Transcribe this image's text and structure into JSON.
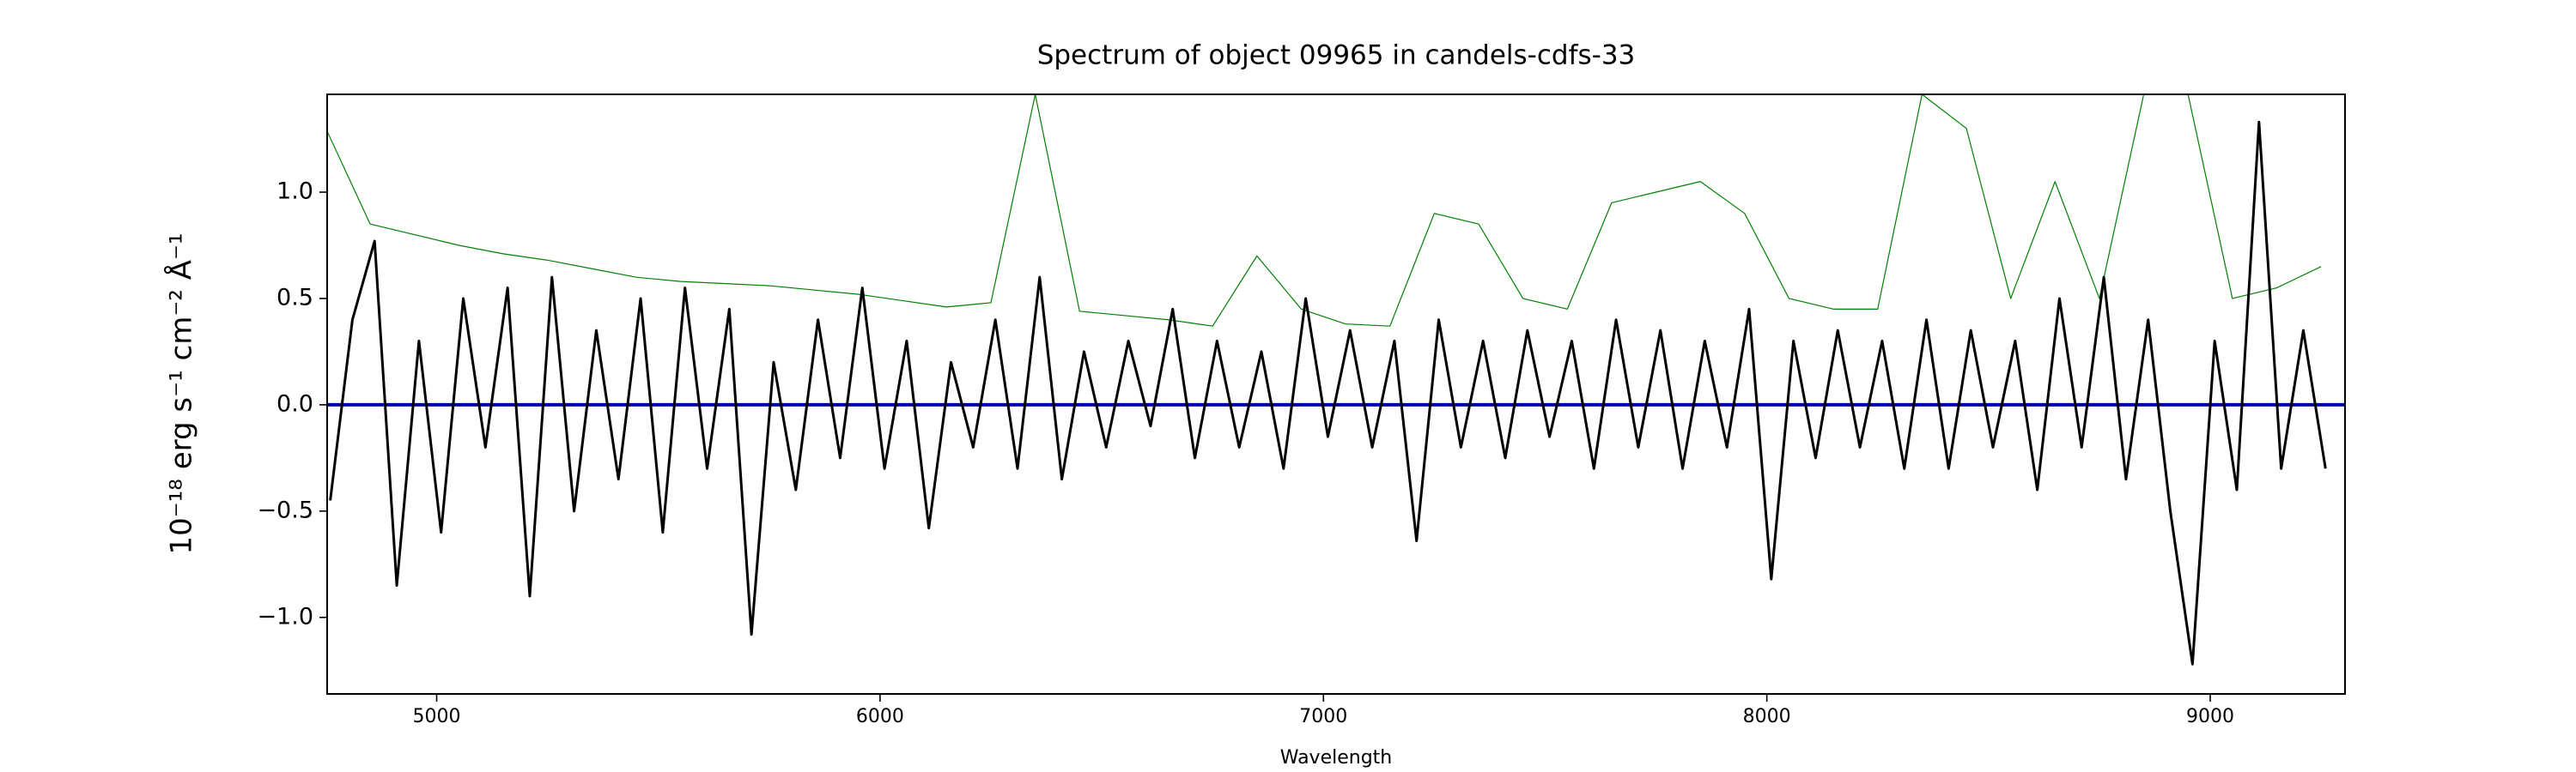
{
  "chart_data": {
    "type": "line",
    "title": "Spectrum of object 09965 in candels-cdfs-33",
    "x_label": "Wavelength",
    "y_label": "10⁻¹⁸ erg s⁻¹ cm⁻² Å⁻¹",
    "xlim": [
      4753,
      9304
    ],
    "ylim": [
      -1.36,
      1.46
    ],
    "xticks": [
      5000,
      6000,
      7000,
      8000,
      9000
    ],
    "yticks": [
      {
        "value": -1,
        "label": "−1.0"
      },
      {
        "value": -0.5,
        "label": "−0.5"
      },
      {
        "value": 0,
        "label": "0.0"
      },
      0.5,
      {
        "value": 1,
        "label": "1.0"
      }
    ],
    "series": [
      {
        "color": "#008000",
        "line_width": 1.2,
        "x": [
          4750,
          4850,
          4950,
          5050,
          5150,
          5250,
          5350,
          5450,
          5550,
          5650,
          5750,
          5850,
          5950,
          6050,
          6150,
          6250,
          6350,
          6450,
          6550,
          6650,
          6750,
          6850,
          6950,
          7050,
          7150,
          7250,
          7350,
          7450,
          7550,
          7650,
          7750,
          7850,
          7950,
          8050,
          8150,
          8250,
          8350,
          8450,
          8550,
          8650,
          8750,
          8850,
          8950,
          9050,
          9150,
          9250
        ],
        "values": [
          1.3,
          0.85,
          0.8,
          0.75,
          0.71,
          0.68,
          0.64,
          0.6,
          0.58,
          0.57,
          0.56,
          0.54,
          0.52,
          0.49,
          0.46,
          0.48,
          1.46,
          0.44,
          0.42,
          0.4,
          0.37,
          0.7,
          0.45,
          0.38,
          0.37,
          0.9,
          0.85,
          0.5,
          0.45,
          0.95,
          1.0,
          1.05,
          0.9,
          0.5,
          0.45,
          0.45,
          1.46,
          1.3,
          0.5,
          1.05,
          0.5,
          1.46,
          1.46,
          0.5,
          0.55,
          0.65
        ]
      },
      {
        "color": "#0000aa",
        "line_width": 4,
        "x": [
          4753,
          9304
        ],
        "values": [
          0,
          0
        ]
      },
      {
        "color": "#000000",
        "line_width": 3,
        "x": [
          4760,
          4810,
          4860,
          4910,
          4960,
          5010,
          5060,
          5110,
          5160,
          5210,
          5260,
          5310,
          5360,
          5410,
          5460,
          5510,
          5560,
          5610,
          5660,
          5710,
          5760,
          5810,
          5860,
          5910,
          5960,
          6010,
          6060,
          6110,
          6160,
          6210,
          6260,
          6310,
          6360,
          6410,
          6460,
          6510,
          6560,
          6610,
          6660,
          6710,
          6760,
          6810,
          6860,
          6910,
          6960,
          7010,
          7060,
          7110,
          7160,
          7210,
          7260,
          7310,
          7360,
          7410,
          7460,
          7510,
          7560,
          7610,
          7660,
          7710,
          7760,
          7810,
          7860,
          7910,
          7960,
          8010,
          8060,
          8110,
          8160,
          8210,
          8260,
          8310,
          8360,
          8410,
          8460,
          8510,
          8560,
          8610,
          8660,
          8710,
          8760,
          8810,
          8860,
          8910,
          8960,
          9010,
          9060,
          9110,
          9160,
          9210,
          9260
        ],
        "values": [
          -0.45,
          0.4,
          0.77,
          -0.85,
          0.3,
          -0.6,
          0.5,
          -0.2,
          0.55,
          -0.9,
          0.6,
          -0.5,
          0.35,
          -0.35,
          0.5,
          -0.6,
          0.55,
          -0.3,
          0.45,
          -1.08,
          0.2,
          -0.4,
          0.4,
          -0.25,
          0.55,
          -0.3,
          0.3,
          -0.58,
          0.2,
          -0.2,
          0.4,
          -0.3,
          0.6,
          -0.35,
          0.25,
          -0.2,
          0.3,
          -0.1,
          0.45,
          -0.25,
          0.3,
          -0.2,
          0.25,
          -0.3,
          0.5,
          -0.15,
          0.35,
          -0.2,
          0.3,
          -0.64,
          0.4,
          -0.2,
          0.3,
          -0.25,
          0.35,
          -0.15,
          0.3,
          -0.3,
          0.4,
          -0.2,
          0.35,
          -0.3,
          0.3,
          -0.2,
          0.45,
          -0.82,
          0.3,
          -0.25,
          0.35,
          -0.2,
          0.3,
          -0.3,
          0.4,
          -0.3,
          0.35,
          -0.2,
          0.3,
          -0.4,
          0.5,
          -0.2,
          0.6,
          -0.35,
          0.4,
          -0.5,
          -1.22,
          0.3,
          -0.4,
          1.33,
          -0.3,
          0.35,
          -0.3
        ]
      }
    ]
  }
}
